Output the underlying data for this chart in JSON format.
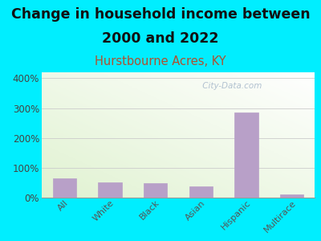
{
  "title_line1": "Change in household income between",
  "title_line2": "2000 and 2022",
  "subtitle": "Hurstbourne Acres, KY",
  "categories": [
    "All",
    "White",
    "Black",
    "Asian",
    "Hispanic",
    "Multirace"
  ],
  "values": [
    65,
    50,
    48,
    38,
    285,
    10
  ],
  "bar_color": "#b8a0c8",
  "background_outer": "#00eeff",
  "background_inner": "#e8f0e0",
  "title_fontsize": 12.5,
  "subtitle_fontsize": 10.5,
  "subtitle_color": "#b05030",
  "ylabel_ticks": [
    0,
    100,
    200,
    300,
    400
  ],
  "ylim": [
    0,
    420
  ],
  "watermark": " City-Data.com",
  "watermark_color": "#aabbcc"
}
